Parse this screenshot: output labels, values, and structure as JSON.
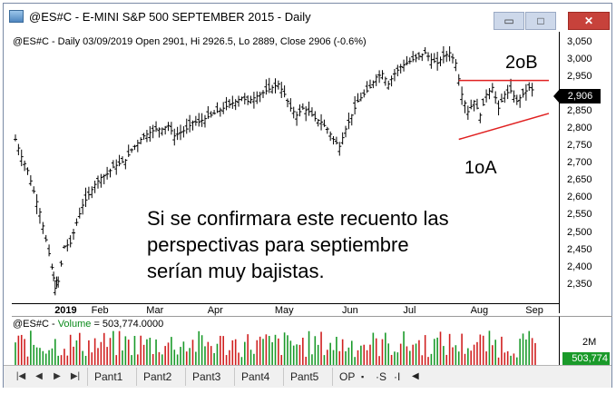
{
  "window": {
    "title": "@ES#C - E-MINI S&P 500 SEPTEMBER 2015 - Daily",
    "min_glyph": "▭",
    "max_glyph": "□",
    "close_glyph": "✕"
  },
  "chart_info": "@ES#C - Daily 03/09/2019 Open 2901, Hi 2926.5, Lo 2889, Close 2906 (-0.6%)",
  "annotations": {
    "top_label": "2oB",
    "bottom_label": "1oA",
    "overlay_lines": [
      "Si se confirmara este recuento las",
      "perspectivas para septiembre",
      "serían muy bajistas."
    ],
    "line_color": "#e02020"
  },
  "price_axis": {
    "labels": [
      "3,050",
      "3,000",
      "2,950",
      "2,900",
      "2,850",
      "2,800",
      "2,750",
      "2,700",
      "2,650",
      "2,600",
      "2,550",
      "2,500",
      "2,450",
      "2,400",
      "2,350"
    ],
    "last_price": "2,906"
  },
  "x_axis": {
    "labels": [
      "2019",
      "Feb",
      "Mar",
      "Apr",
      "May",
      "Jun",
      "Jul",
      "Aug",
      "Sep"
    ]
  },
  "volume": {
    "prefix": "@ES#C - ",
    "label": "Volume",
    "value_text": " = 503,774.0000",
    "axis_label": "2M",
    "last_value": "503,774"
  },
  "tabs": {
    "nav": [
      "|◀",
      "◀",
      "▶",
      "▶|"
    ],
    "items": [
      "Pant1",
      "Pant2",
      "Pant3",
      "Pant4",
      "Pant5",
      "OP"
    ],
    "extras": [
      "▪",
      "·S",
      "·I",
      "◀"
    ]
  },
  "chart_data": {
    "type": "bar",
    "series_kind": "ohlc",
    "x_months": [
      "2019",
      "Feb",
      "Mar",
      "Apr",
      "May",
      "Jun",
      "Jul",
      "Aug",
      "Sep"
    ],
    "close_path": [
      [
        0,
        2770
      ],
      [
        2,
        2720
      ],
      [
        4,
        2680
      ],
      [
        6,
        2620
      ],
      [
        8,
        2560
      ],
      [
        10,
        2480
      ],
      [
        12,
        2400
      ],
      [
        13,
        2340
      ],
      [
        14,
        2360
      ],
      [
        16,
        2460
      ],
      [
        18,
        2470
      ],
      [
        20,
        2530
      ],
      [
        22,
        2580
      ],
      [
        24,
        2610
      ],
      [
        26,
        2640
      ],
      [
        28,
        2660
      ],
      [
        30,
        2670
      ],
      [
        32,
        2690
      ],
      [
        34,
        2700
      ],
      [
        36,
        2710
      ],
      [
        38,
        2740
      ],
      [
        40,
        2760
      ],
      [
        42,
        2780
      ],
      [
        44,
        2790
      ],
      [
        46,
        2800
      ],
      [
        48,
        2800
      ],
      [
        50,
        2810
      ],
      [
        52,
        2780
      ],
      [
        54,
        2790
      ],
      [
        56,
        2800
      ],
      [
        58,
        2820
      ],
      [
        60,
        2820
      ],
      [
        62,
        2830
      ],
      [
        64,
        2840
      ],
      [
        66,
        2850
      ],
      [
        68,
        2860
      ],
      [
        70,
        2870
      ],
      [
        72,
        2880
      ],
      [
        74,
        2890
      ],
      [
        76,
        2880
      ],
      [
        78,
        2890
      ],
      [
        80,
        2900
      ],
      [
        82,
        2910
      ],
      [
        84,
        2920
      ],
      [
        86,
        2930
      ],
      [
        88,
        2900
      ],
      [
        90,
        2860
      ],
      [
        92,
        2840
      ],
      [
        94,
        2860
      ],
      [
        96,
        2850
      ],
      [
        98,
        2830
      ],
      [
        100,
        2820
      ],
      [
        102,
        2800
      ],
      [
        104,
        2770
      ],
      [
        106,
        2750
      ],
      [
        108,
        2800
      ],
      [
        110,
        2840
      ],
      [
        112,
        2880
      ],
      [
        114,
        2900
      ],
      [
        116,
        2920
      ],
      [
        118,
        2950
      ],
      [
        120,
        2960
      ],
      [
        122,
        2930
      ],
      [
        124,
        2960
      ],
      [
        126,
        2980
      ],
      [
        128,
        2990
      ],
      [
        130,
        3000
      ],
      [
        132,
        3010
      ],
      [
        134,
        3020
      ],
      [
        136,
        3000
      ],
      [
        138,
        2990
      ],
      [
        140,
        3010
      ],
      [
        142,
        3020
      ],
      [
        144,
        2990
      ],
      [
        146,
        2900
      ],
      [
        148,
        2850
      ],
      [
        150,
        2880
      ],
      [
        152,
        2840
      ],
      [
        154,
        2900
      ],
      [
        156,
        2920
      ],
      [
        158,
        2860
      ],
      [
        160,
        2900
      ],
      [
        162,
        2910
      ],
      [
        164,
        2880
      ],
      [
        166,
        2900
      ],
      [
        168,
        2920
      ],
      [
        170,
        2906
      ]
    ],
    "ylim": [
      2310,
      3065
    ]
  }
}
